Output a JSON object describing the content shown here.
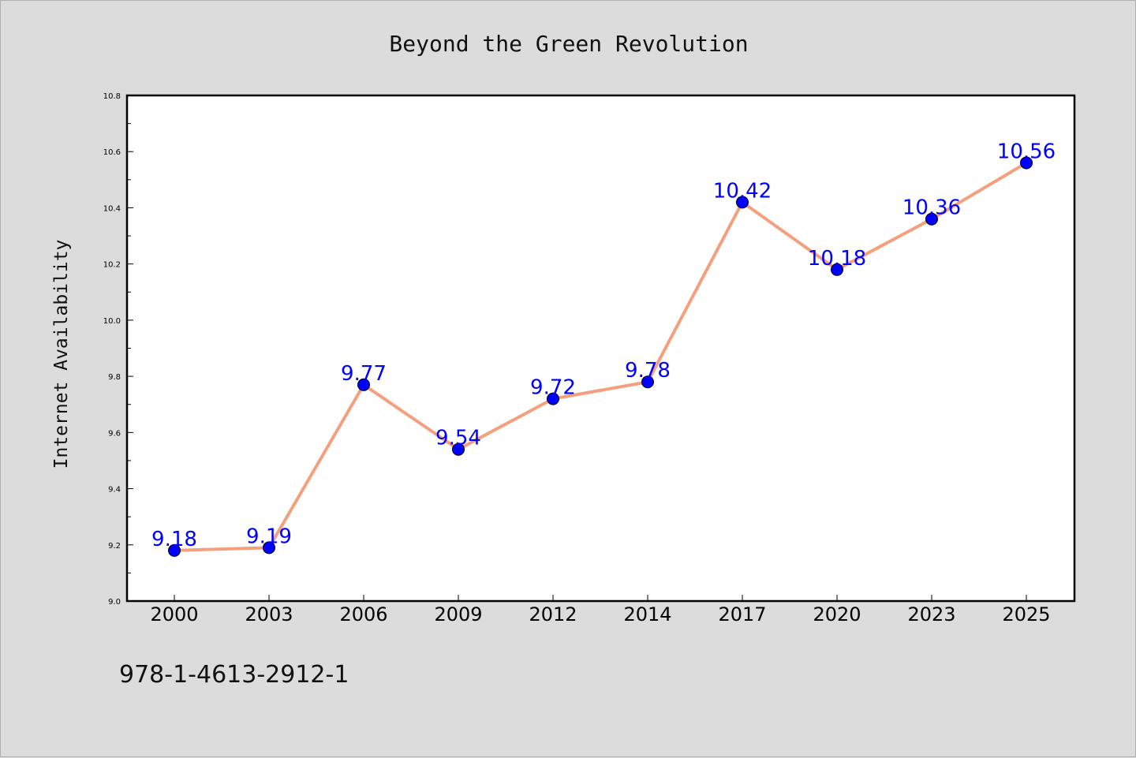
{
  "chart_data": {
    "type": "line",
    "title": "Beyond the Green Revolution",
    "ylabel": "Internet Availability",
    "xlabel": "",
    "categories": [
      "2000",
      "2003",
      "2006",
      "2009",
      "2012",
      "2014",
      "2017",
      "2020",
      "2023",
      "2025"
    ],
    "series": [
      {
        "values": [
          9.18,
          9.19,
          9.77,
          9.54,
          9.72,
          9.78,
          10.42,
          10.18,
          10.36,
          10.56
        ],
        "line_color": "#f4a07f",
        "marker_color": "#0000ff"
      }
    ],
    "data_labels": [
      "9.18",
      "9.19",
      "9.77",
      "9.54",
      "9.72",
      "9.78",
      "10.42",
      "10.18",
      "10.36",
      "10.56"
    ],
    "ylim": [
      9.0,
      10.8
    ],
    "yticks": [
      "9.0",
      "9.2",
      "9.4",
      "9.6",
      "9.8",
      "10.0",
      "10.2",
      "10.4",
      "10.6",
      "10.8"
    ],
    "grid": false,
    "legend": "none"
  },
  "footer": {
    "isbn": "978-1-4613-2912-1"
  }
}
